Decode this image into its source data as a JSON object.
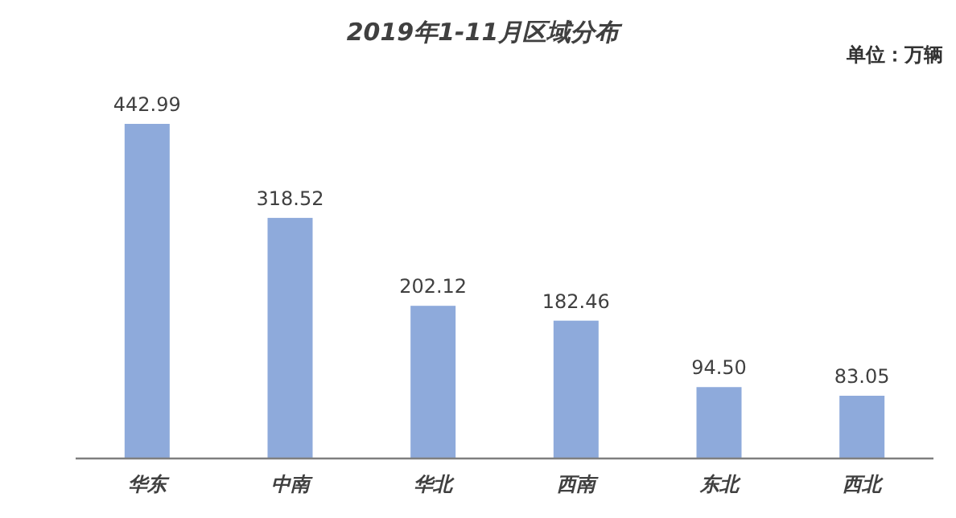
{
  "chart_data": {
    "type": "bar",
    "title": "2019年1-11月区域分布",
    "annotations": [
      "单位：万辆"
    ],
    "categories": [
      "华东",
      "中南",
      "华北",
      "西南",
      "东北",
      "西北"
    ],
    "values": [
      442.99,
      318.52,
      202.12,
      182.46,
      94.5,
      83.05
    ],
    "value_labels": [
      "442.99",
      "318.52",
      "202.12",
      "182.46",
      "94.50",
      "83.05"
    ],
    "color": "#8eaadb"
  }
}
